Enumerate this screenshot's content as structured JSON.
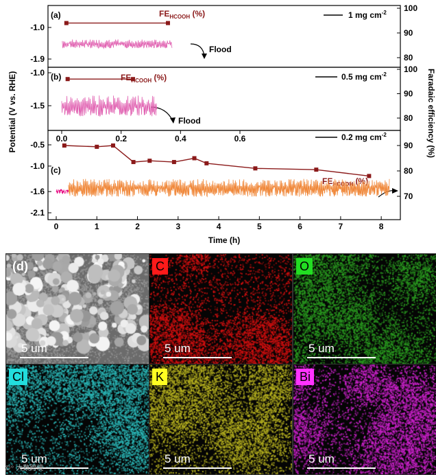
{
  "chart_data": [
    {
      "panel": "(a)",
      "type": "line",
      "x_shared_label": "Time (h)",
      "y_left_label": "Potential (V vs. RHE)",
      "y_right_label": "Faradaic efficiency (%)",
      "y_left_ticks": [
        "-1.0",
        "-1.9"
      ],
      "y_right_ticks": [
        "100",
        "90",
        "80"
      ],
      "legend": "1 mg cm",
      "legend_sup": "-2",
      "fe_label": "FE",
      "fe_sub": "HCOOH",
      "fe_unit": " (%)",
      "annotation": "Flood",
      "fe_series": {
        "x": [
          0.25,
          2.75
        ],
        "y": [
          94,
          94
        ]
      },
      "potential_band": {
        "x_start": 0.15,
        "x_end": 2.85,
        "mean": -1.52,
        "amplitude": 0.12
      }
    },
    {
      "panel": "(b)",
      "type": "line",
      "y_left_ticks": [
        "-1.0",
        "-1.5"
      ],
      "y_right_ticks": [
        "100",
        "90",
        "80"
      ],
      "x_ticks": [
        "0.0",
        "0.2",
        "0.4",
        "0.6"
      ],
      "legend": "0.5 mg cm",
      "legend_sup": "-2",
      "fe_label": "FE",
      "fe_sub": "HCOOH",
      "fe_unit": " (%)",
      "annotation": "Flood",
      "fe_series": {
        "x": [
          0.02,
          0.24
        ],
        "y": [
          96,
          96
        ]
      },
      "potential_band": {
        "x_start": 0.0,
        "x_end": 0.32,
        "mean": -1.57,
        "amplitude": 0.15
      }
    },
    {
      "panel": "(c)",
      "type": "line",
      "y_left_ticks": [
        "-0.5",
        "-1.0",
        "-1.6",
        "-2.1"
      ],
      "y_right_ticks": [
        "90",
        "80",
        "70"
      ],
      "x_ticks": [
        "0",
        "1",
        "2",
        "3",
        "4",
        "5",
        "6",
        "7",
        "8"
      ],
      "legend": "0.2 mg cm",
      "legend_sup": "-2",
      "fe_label": "FE",
      "fe_sub": "HCOOH",
      "fe_unit": " (%)",
      "fe_series": {
        "x": [
          0.2,
          1.0,
          1.4,
          1.9,
          2.3,
          2.9,
          3.4,
          3.7,
          4.9,
          6.4,
          7.7
        ],
        "y": [
          90,
          89.5,
          90,
          83.5,
          84,
          83.5,
          85,
          83,
          81,
          80.5,
          78
        ]
      },
      "potential_band": {
        "x_start": 0.0,
        "x_end": 8.2,
        "mean": -1.6,
        "amplitude": 0.1,
        "initial_segment_end": 0.3
      }
    }
  ],
  "colors": {
    "fe_line": "#8b1a1a",
    "potential_a_b": "#e05fb0",
    "potential_c_start": "#e6007e",
    "potential_c": "#f0883a"
  },
  "maps": [
    {
      "tag": "(d)",
      "name": "sem",
      "color": "#9a9a9a",
      "tag_bg": "",
      "tag_color": "#ffffff"
    },
    {
      "tag": "C",
      "name": "carbon",
      "color": "#d41010",
      "tag_bg": "#ff1a1a",
      "tag_color": "#000000"
    },
    {
      "tag": "O",
      "name": "oxygen",
      "color": "#2a9a20",
      "tag_bg": "#22dd22",
      "tag_color": "#000000"
    },
    {
      "tag": "Cl",
      "name": "chlorine",
      "color": "#2bb5b5",
      "tag_bg": "#22dddd",
      "tag_color": "#000000"
    },
    {
      "tag": "K",
      "name": "potassium",
      "color": "#b5b020",
      "tag_bg": "#ffff22",
      "tag_color": "#000000"
    },
    {
      "tag": "Bi",
      "name": "bismuth",
      "color": "#cc22cc",
      "tag_bg": "#ff33ff",
      "tag_color": "#000000"
    }
  ],
  "scale_label": "5 um",
  "watermark": "©ᵒ 大数跨境"
}
